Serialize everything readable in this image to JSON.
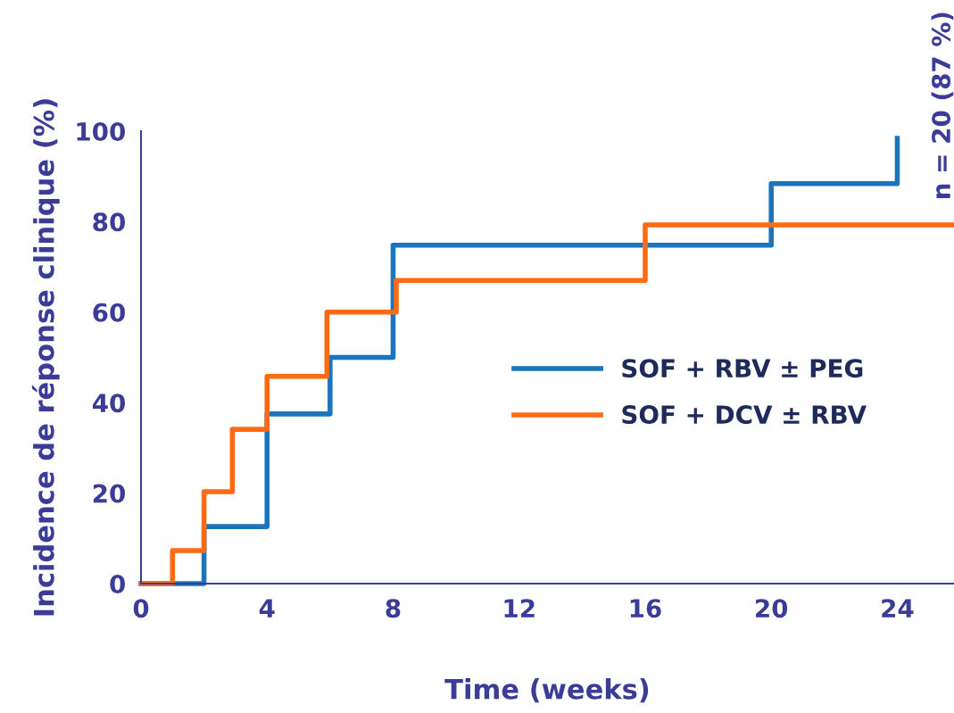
{
  "chart_data": {
    "type": "step",
    "xlabel": "Time (weeks)",
    "ylabel": "Incidence de réponse clinique (%)",
    "xlim": [
      0,
      25.8
    ],
    "xticks": [
      0,
      4,
      8,
      12,
      16,
      20,
      24
    ],
    "ylim": [
      0,
      100
    ],
    "yticks": [
      0,
      20,
      40,
      60,
      80,
      100
    ],
    "grid": false,
    "legend": "right",
    "marker": "none",
    "line_style": "solid",
    "annotations": [
      "n = 20 (87 %)"
    ],
    "series": [
      {
        "name": "SOF + RBV ± PEG",
        "color": "#1a75bc",
        "x": [
          0,
          2,
          4,
          6,
          8,
          20,
          24
        ],
        "values": [
          0,
          12.6,
          37.5,
          50,
          74.8,
          88.4,
          98.4
        ]
      },
      {
        "name": "SOF + DCV ± RBV",
        "color": "#ff6a13",
        "x": [
          0,
          1,
          2,
          2.9,
          4,
          5.9,
          8.1,
          16,
          25.8
        ],
        "values": [
          0,
          7.3,
          20.3,
          34.1,
          45.8,
          60,
          67,
          79.3,
          79.3
        ]
      }
    ]
  }
}
